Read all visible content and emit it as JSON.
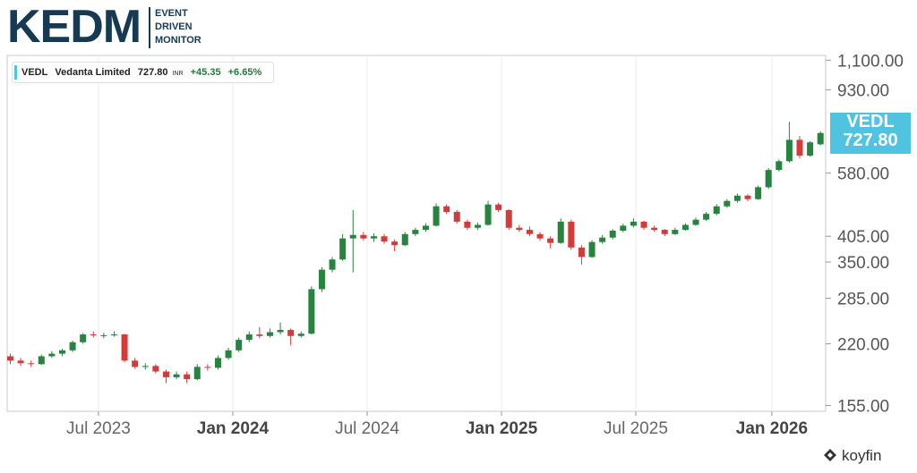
{
  "header": {
    "logo": "KEDM",
    "logo_lines": [
      "EVENT",
      "DRIVEN",
      "MONITOR"
    ]
  },
  "legend": {
    "ticker": "VEDL",
    "name": "Vedanta Limited",
    "price": "727.80",
    "currency": "INR",
    "change": "+45.35",
    "change_pct": "+6.65%"
  },
  "watermark": "koyfin",
  "chart_data": {
    "type": "candlestick",
    "log_scale": true,
    "grid": "x",
    "up_color": "#26843f",
    "down_color": "#d33b3b",
    "x": [
      0,
      1,
      2,
      3,
      4,
      5,
      6,
      7,
      8,
      9,
      10,
      11,
      12,
      13,
      14,
      15,
      16,
      17,
      18,
      19,
      20,
      21,
      22,
      23,
      24,
      25,
      26,
      27,
      28,
      29,
      30,
      31,
      32,
      33,
      34,
      35,
      36,
      37,
      38,
      39,
      40,
      41,
      42,
      43,
      44,
      45,
      46,
      47,
      48,
      49,
      50,
      51,
      52,
      53,
      54,
      55,
      56,
      57,
      58,
      59,
      60,
      61,
      62,
      63,
      64,
      65,
      66,
      67,
      68,
      69,
      70,
      71,
      72,
      73,
      74,
      75,
      76,
      77,
      78
    ],
    "xlim": [
      -0.3,
      78.5
    ],
    "xticks": [
      {
        "value": 8.49,
        "label": "Jul 2023"
      },
      {
        "value": 21.42,
        "label": "Jan 2024"
      },
      {
        "value": 34.36,
        "label": "Jul 2024"
      },
      {
        "value": 47.29,
        "label": "Jan 2025"
      },
      {
        "value": 60.22,
        "label": "Jul 2025"
      },
      {
        "value": 73.32,
        "label": "Jan 2026"
      }
    ],
    "ylim": [
      150,
      1130
    ],
    "yticks": [
      {
        "value": 155,
        "label": "155.00"
      },
      {
        "value": 220,
        "label": "220.00"
      },
      {
        "value": 285,
        "label": "285.00"
      },
      {
        "value": 350,
        "label": "350.00"
      },
      {
        "value": 405,
        "label": "405.00"
      },
      {
        "value": 580,
        "label": "580.00"
      },
      {
        "value": 930,
        "label": "930.00"
      },
      {
        "value": 1100,
        "label": "1,100.00"
      }
    ],
    "series": [
      {
        "name": "VEDL",
        "open": [
          205,
          200,
          197,
          196,
          205,
          208,
          212,
          222,
          232,
          231,
          231,
          232,
          200,
          193,
          194,
          188,
          182,
          185,
          180,
          193,
          192,
          203,
          212,
          225,
          232,
          230,
          235,
          238,
          230,
          233,
          300,
          335,
          355,
          400,
          408,
          400,
          405,
          393,
          385,
          410,
          420,
          430,
          480,
          465,
          440,
          425,
          432,
          485,
          470,
          425,
          420,
          410,
          400,
          390,
          440,
          380,
          360,
          392,
          402,
          418,
          430,
          440,
          425,
          420,
          410,
          420,
          432,
          445,
          460,
          480,
          495,
          510,
          500,
          535,
          590,
          620,
          700,
          640,
          682.45
        ],
        "high": [
          208,
          203,
          200,
          207,
          211,
          214,
          224,
          234,
          236,
          234,
          236,
          233,
          203,
          197,
          196,
          190,
          188,
          188,
          196,
          196,
          206,
          215,
          228,
          236,
          242,
          240,
          248,
          240,
          236,
          305,
          340,
          360,
          410,
          470,
          415,
          412,
          410,
          398,
          415,
          425,
          436,
          488,
          485,
          470,
          445,
          438,
          495,
          490,
          472,
          432,
          428,
          415,
          405,
          448,
          445,
          385,
          396,
          408,
          422,
          435,
          448,
          442,
          430,
          422,
          425,
          436,
          450,
          465,
          486,
          500,
          516,
          514,
          540,
          596,
          626,
          775,
          715,
          695,
          735
        ],
        "low": [
          196,
          194,
          193,
          195,
          203,
          205,
          210,
          220,
          228,
          227,
          229,
          198,
          191,
          190,
          186,
          176,
          180,
          176,
          179,
          189,
          190,
          201,
          210,
          222,
          227,
          228,
          232,
          218,
          228,
          232,
          295,
          330,
          352,
          330,
          395,
          392,
          388,
          372,
          383,
          405,
          415,
          428,
          460,
          435,
          420,
          420,
          430,
          465,
          420,
          415,
          405,
          395,
          378,
          388,
          375,
          345,
          358,
          388,
          398,
          414,
          426,
          420,
          416,
          405,
          408,
          418,
          430,
          442,
          456,
          476,
          490,
          494,
          498,
          530,
          585,
          615,
          630,
          636,
          678
        ],
        "close": [
          200,
          197,
          196,
          205,
          208,
          212,
          222,
          232,
          231,
          231,
          232,
          200,
          193,
          194,
          188,
          182,
          185,
          180,
          193,
          192,
          203,
          212,
          225,
          232,
          230,
          235,
          238,
          230,
          233,
          300,
          335,
          355,
          400,
          408,
          400,
          405,
          393,
          385,
          410,
          420,
          430,
          480,
          465,
          440,
          425,
          432,
          485,
          470,
          425,
          420,
          410,
          400,
          390,
          440,
          380,
          360,
          392,
          402,
          418,
          430,
          440,
          425,
          420,
          410,
          420,
          432,
          445,
          460,
          480,
          495,
          510,
          500,
          535,
          590,
          620,
          700,
          640,
          690,
          727.8
        ]
      }
    ]
  }
}
